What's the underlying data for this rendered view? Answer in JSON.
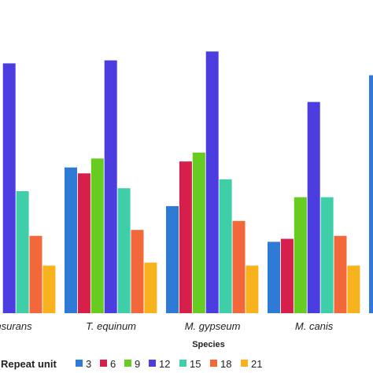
{
  "chart_data": {
    "type": "bar",
    "categories": [
      "...nsurans",
      "T. equinum",
      "M. gypseum",
      "M. canis",
      ""
    ],
    "xlabel": "Species",
    "legend_title": "Repeat unit",
    "legend_position": "bottom",
    "grid": false,
    "ylim": [
      0,
      100
    ],
    "series": [
      {
        "name": "3",
        "color": "#2e7bd6",
        "values": [
          null,
          49,
          36,
          24,
          80
        ]
      },
      {
        "name": "6",
        "color": "#d61f4b",
        "values": [
          null,
          47,
          51,
          25,
          null
        ]
      },
      {
        "name": "9",
        "color": "#66cc22",
        "values": [
          null,
          52,
          54,
          39,
          null
        ]
      },
      {
        "name": "12",
        "color": "#4b3de0",
        "values": [
          84,
          85,
          88,
          71,
          null
        ]
      },
      {
        "name": "15",
        "color": "#3fcfa8",
        "values": [
          41,
          42,
          45,
          39,
          null
        ]
      },
      {
        "name": "18",
        "color": "#f2683a",
        "values": [
          26,
          28,
          31,
          26,
          null
        ]
      },
      {
        "name": "21",
        "color": "#f7b21e",
        "values": [
          16,
          17,
          16,
          16,
          null
        ]
      }
    ]
  }
}
